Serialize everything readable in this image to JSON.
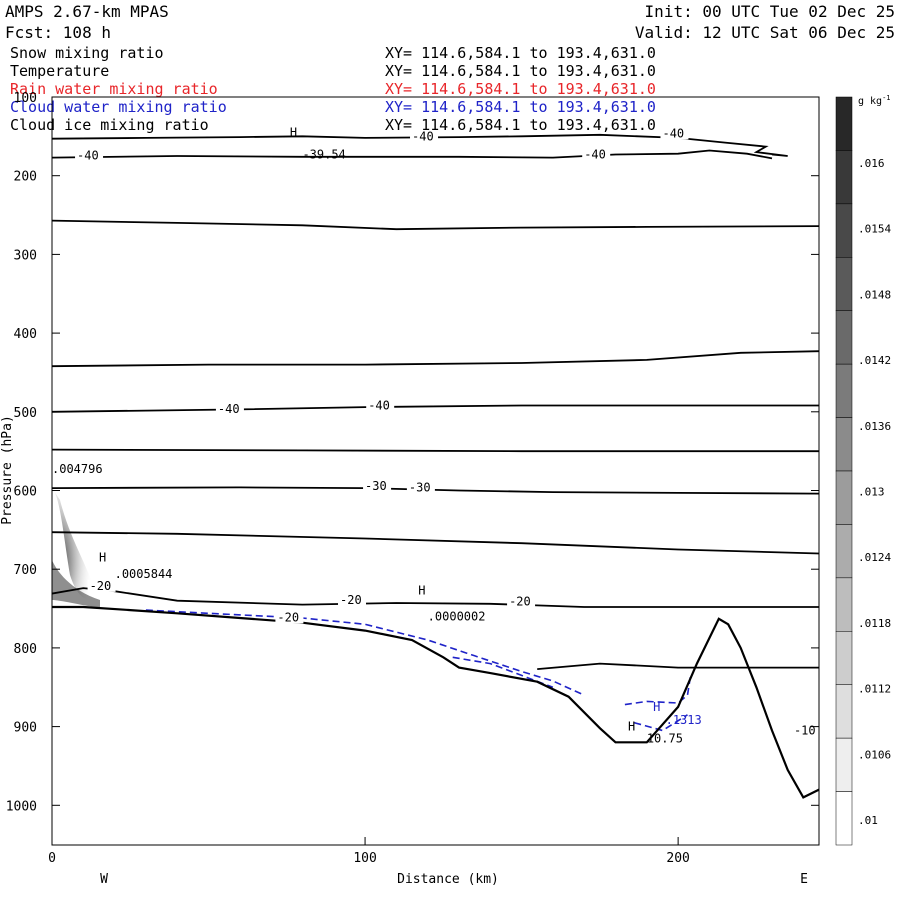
{
  "header": {
    "model": "AMPS 2.67-km MPAS",
    "forecast": "Fcst:  108 h",
    "init": "Init: 00 UTC Tue 02 Dec 25",
    "valid": "Valid: 12 UTC Sat 06 Dec 25"
  },
  "fields": [
    {
      "name": "Snow mixing ratio",
      "xy": "XY= 114.6,584.1 to 193.4,631.0",
      "color": "#000000"
    },
    {
      "name": "Temperature",
      "xy": "XY= 114.6,584.1 to 193.4,631.0",
      "color": "#000000"
    },
    {
      "name": "Rain water mixing ratio",
      "xy": "XY= 114.6,584.1 to 193.4,631.0",
      "color": "#e8262a"
    },
    {
      "name": "Cloud water mixing ratio",
      "xy": "XY= 114.6,584.1 to 193.4,631.0",
      "color": "#1f23c8"
    },
    {
      "name": "Cloud ice mixing ratio",
      "xy": "XY= 114.6,584.1 to 193.4,631.0",
      "color": "#000000"
    }
  ],
  "chart_data": {
    "type": "cross-section",
    "xlabel": "Distance (km)",
    "ylabel": "Pressure (hPa)",
    "xlim": [
      0,
      245
    ],
    "ylim": [
      1050,
      100
    ],
    "x_ticks": [
      0,
      100,
      200
    ],
    "y_ticks": [
      100,
      200,
      300,
      400,
      500,
      600,
      700,
      800,
      900,
      1000
    ],
    "direction_labels": {
      "left": "W",
      "right": "E"
    },
    "colorbar": {
      "unit": "g kg",
      "unit_sup": "-1",
      "labels": [
        ".016",
        ".0154",
        ".0148",
        ".0142",
        ".0136",
        ".013",
        ".0124",
        ".0118",
        ".0112",
        ".0106",
        ".01"
      ],
      "levels": 14
    },
    "terrain": [
      [
        0,
        748
      ],
      [
        10,
        748
      ],
      [
        25,
        752
      ],
      [
        40,
        756
      ],
      [
        60,
        762
      ],
      [
        80,
        768
      ],
      [
        100,
        778
      ],
      [
        115,
        790
      ],
      [
        125,
        812
      ],
      [
        130,
        825
      ],
      [
        140,
        832
      ],
      [
        155,
        843
      ],
      [
        165,
        862
      ],
      [
        175,
        902
      ],
      [
        180,
        920
      ],
      [
        190,
        920
      ],
      [
        200,
        875
      ],
      [
        206,
        820
      ],
      [
        213,
        763
      ],
      [
        216,
        770
      ],
      [
        220,
        800
      ],
      [
        225,
        850
      ],
      [
        230,
        905
      ],
      [
        235,
        955
      ],
      [
        240,
        990
      ],
      [
        245,
        980
      ]
    ],
    "isotherms": [
      {
        "label": "-40",
        "points": [
          [
            0,
            153
          ],
          [
            30,
            152
          ],
          [
            60,
            151
          ],
          [
            80,
            150
          ],
          [
            100,
            152
          ],
          [
            130,
            151
          ],
          [
            150,
            150
          ],
          [
            175,
            148
          ],
          [
            200,
            152
          ],
          [
            215,
            158
          ],
          [
            228,
            163
          ],
          [
            225,
            170
          ],
          [
            235,
            175
          ],
          [
            230,
            173
          ]
        ]
      },
      {
        "label": "-40",
        "points": [
          [
            0,
            177
          ],
          [
            40,
            175
          ],
          [
            80,
            176
          ],
          [
            110,
            176
          ],
          [
            130,
            176
          ],
          [
            160,
            177
          ],
          [
            180,
            173
          ],
          [
            200,
            172
          ],
          [
            210,
            168
          ],
          [
            222,
            172
          ],
          [
            230,
            178
          ]
        ]
      },
      {
        "label": "",
        "points": [
          [
            0,
            257
          ],
          [
            40,
            260
          ],
          [
            80,
            263
          ],
          [
            110,
            268
          ],
          [
            150,
            266
          ],
          [
            190,
            265
          ],
          [
            245,
            264
          ]
        ]
      },
      {
        "label": "",
        "points": [
          [
            0,
            442
          ],
          [
            50,
            440
          ],
          [
            100,
            440
          ],
          [
            150,
            438
          ],
          [
            190,
            434
          ],
          [
            220,
            425
          ],
          [
            245,
            423
          ]
        ]
      },
      {
        "label": "-40",
        "points": [
          [
            0,
            500
          ],
          [
            60,
            497
          ],
          [
            100,
            494
          ],
          [
            150,
            492
          ],
          [
            200,
            492
          ],
          [
            245,
            492
          ]
        ]
      },
      {
        "label": "",
        "points": [
          [
            0,
            548
          ],
          [
            80,
            549
          ],
          [
            150,
            550
          ],
          [
            245,
            550
          ]
        ]
      },
      {
        "label": "-30",
        "points": [
          [
            0,
            597
          ],
          [
            60,
            596
          ],
          [
            100,
            597
          ],
          [
            130,
            600
          ],
          [
            160,
            602
          ],
          [
            200,
            603
          ],
          [
            245,
            604
          ]
        ]
      },
      {
        "label": "",
        "points": [
          [
            0,
            653
          ],
          [
            40,
            655
          ],
          [
            100,
            661
          ],
          [
            150,
            667
          ],
          [
            200,
            675
          ],
          [
            245,
            680
          ]
        ]
      },
      {
        "label": "-20",
        "points": [
          [
            0,
            731
          ],
          [
            10,
            724
          ],
          [
            20,
            728
          ],
          [
            40,
            740
          ],
          [
            80,
            745
          ],
          [
            110,
            743
          ],
          [
            140,
            744
          ],
          [
            170,
            748
          ],
          [
            245,
            748
          ]
        ]
      },
      {
        "label": "-10",
        "points": [
          [
            155,
            827
          ],
          [
            175,
            820
          ],
          [
            200,
            825
          ],
          [
            245,
            825
          ]
        ]
      }
    ],
    "cloud_water_contours": [
      [
        [
          30,
          752
        ],
        [
          50,
          756
        ],
        [
          80,
          762
        ],
        [
          100,
          770
        ],
        [
          120,
          790
        ],
        [
          135,
          810
        ],
        [
          150,
          830
        ],
        [
          160,
          842
        ],
        [
          170,
          860
        ]
      ],
      [
        [
          128,
          812
        ],
        [
          140,
          820
        ],
        [
          150,
          835
        ],
        [
          160,
          850
        ]
      ],
      [
        [
          183,
          872
        ],
        [
          190,
          868
        ],
        [
          200,
          870
        ],
        [
          203,
          860
        ],
        [
          204,
          835
        ]
      ],
      [
        [
          186,
          895
        ],
        [
          195,
          905
        ],
        [
          203,
          885
        ]
      ]
    ],
    "annotations": [
      {
        "text": "H",
        "x": 76,
        "y": 150
      },
      {
        "text": "-39.54",
        "x": 80,
        "y": 178
      },
      {
        "text": ".004796",
        "x": 0,
        "y": 578
      },
      {
        "text": "H",
        "x": 15,
        "y": 690
      },
      {
        "text": ".0005844",
        "x": 20,
        "y": 711
      },
      {
        "text": "H",
        "x": 117,
        "y": 732
      },
      {
        "text": ".0000002",
        "x": 120,
        "y": 765
      },
      {
        "text": "H",
        "x": 192,
        "y": 880
      },
      {
        "text": ".1313",
        "x": 196,
        "y": 897
      },
      {
        "text": "H",
        "x": 184,
        "y": 905
      },
      {
        "text": "10.75",
        "x": 190,
        "y": 920
      }
    ],
    "contour_labels": [
      {
        "text": "-40",
        "x": 8,
        "y": 178
      },
      {
        "text": "-40",
        "x": 115,
        "y": 154
      },
      {
        "text": "-40",
        "x": 170,
        "y": 177
      },
      {
        "text": "-40",
        "x": 195,
        "y": 150
      },
      {
        "text": "-40",
        "x": 53,
        "y": 500
      },
      {
        "text": "-40",
        "x": 101,
        "y": 496
      },
      {
        "text": "-30",
        "x": 100,
        "y": 598
      },
      {
        "text": "-30",
        "x": 114,
        "y": 600
      },
      {
        "text": "-20",
        "x": 12,
        "y": 725
      },
      {
        "text": "-20",
        "x": 92,
        "y": 743
      },
      {
        "text": "-20",
        "x": 146,
        "y": 745
      },
      {
        "text": "-20",
        "x": 72,
        "y": 765
      },
      {
        "text": "-10",
        "x": 237,
        "y": 909
      }
    ]
  }
}
